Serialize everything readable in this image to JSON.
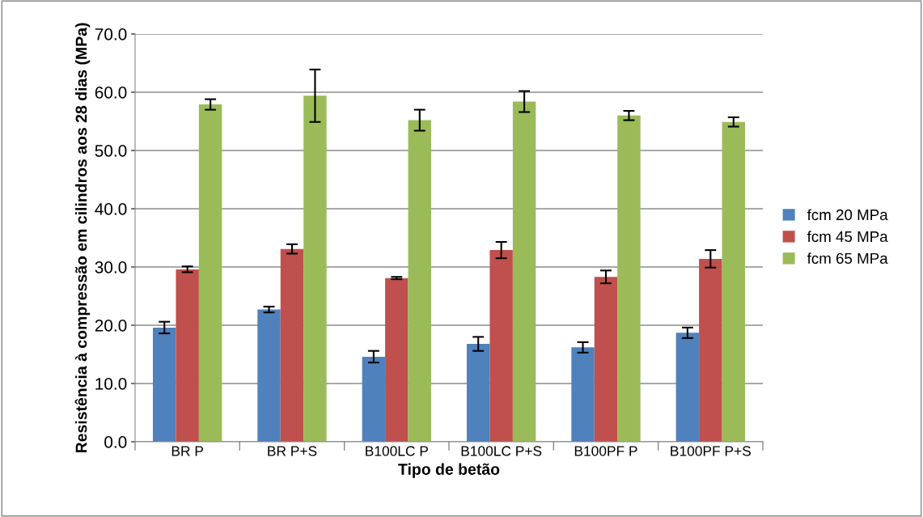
{
  "chart_data": {
    "type": "bar",
    "xlabel": "Tipo de betão",
    "ylabel": "Resistência à compressão em cilindros aos 28 dias (MPa)",
    "categories": [
      "BR P",
      "BR P+S",
      "B100LC P",
      "B100LC P+S",
      "B100PF P",
      "B100PF P+S"
    ],
    "series": [
      {
        "name": "fcm 20 MPa",
        "color": "#4f81bd",
        "values": [
          19.6,
          22.7,
          14.6,
          16.8,
          16.2,
          18.7
        ],
        "errors": [
          1.0,
          0.5,
          1.0,
          1.2,
          0.9,
          0.9
        ]
      },
      {
        "name": "fcm 45 MPa",
        "color": "#c0504d",
        "values": [
          29.6,
          33.1,
          28.1,
          32.9,
          28.3,
          31.4
        ],
        "errors": [
          0.5,
          0.8,
          0.2,
          1.4,
          1.1,
          1.5
        ]
      },
      {
        "name": "fcm 65 MPa",
        "color": "#9bbb59",
        "values": [
          57.9,
          59.4,
          55.2,
          58.4,
          56.0,
          54.9
        ],
        "errors": [
          0.9,
          4.5,
          1.8,
          1.8,
          0.8,
          0.8
        ]
      }
    ],
    "ylim": [
      0,
      70
    ],
    "yticks": [
      {
        "value": 0,
        "label": "0.0"
      },
      {
        "value": 10,
        "label": "10.0"
      },
      {
        "value": 20,
        "label": "20.0"
      },
      {
        "value": 30,
        "label": "30.0"
      },
      {
        "value": 40,
        "label": "40.0"
      },
      {
        "value": 50,
        "label": "50.0"
      },
      {
        "value": 60,
        "label": "60.0"
      },
      {
        "value": 70,
        "label": "70.0"
      }
    ],
    "grid": "y",
    "legend": "right"
  }
}
